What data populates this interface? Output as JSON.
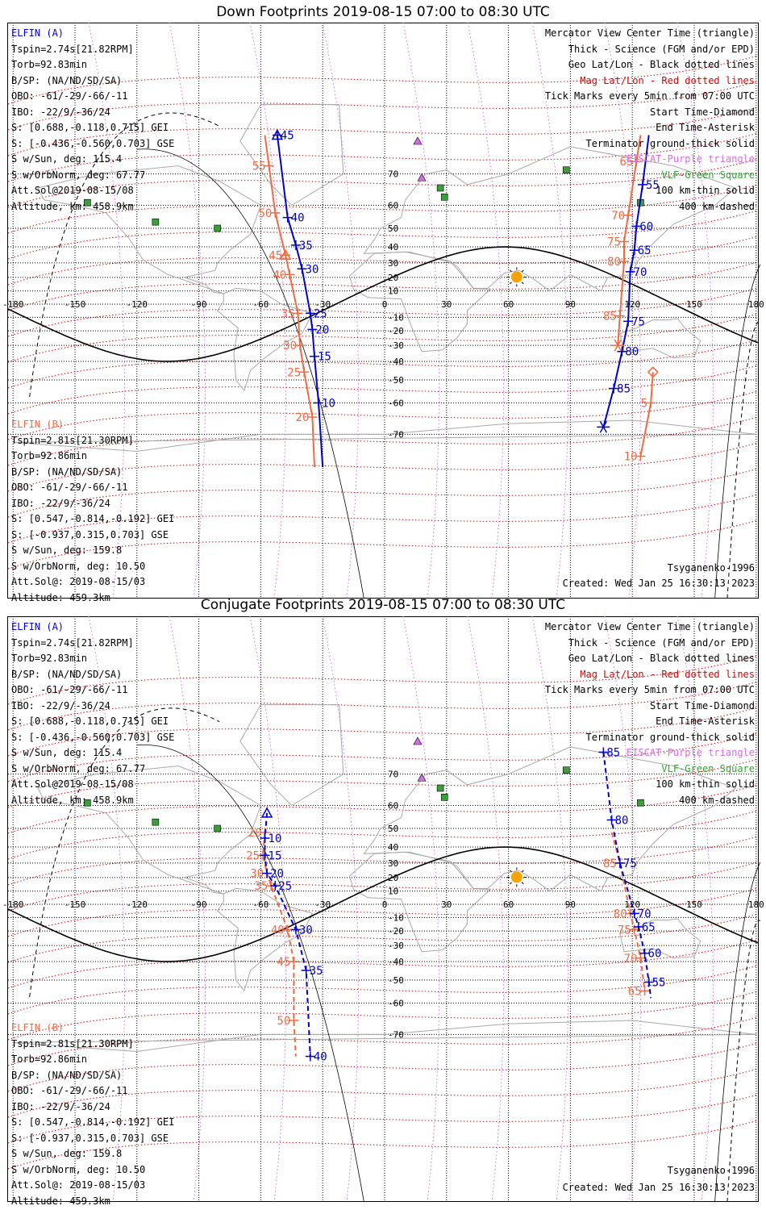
{
  "panels": [
    {
      "title": "Down Footprints 2019-08-15 07:00 to 08:30 UTC",
      "elfin_a": {
        "name": "ELFIN (A)",
        "lines": [
          "Tspin=2.74s[21.82RPM]",
          "Torb=92.83min",
          "B/SP: (NA/ND/SD/SA)",
          "OBO: -61/-29/-66/-11",
          "IBO: -22/9/-36/24",
          "S: [0.688,-0.118,0.715] GEI",
          "S: [-0.436,-0.560,0.703] GSE",
          "S w/Sun, deg: 115.4",
          "S w/OrbNorm, deg: 67.77",
          "Att.Sol@2019-08-15/08",
          "Altitude, km: 458.9km"
        ]
      },
      "elfin_b": {
        "name": "ELFIN (B)",
        "lines": [
          "Tspin=2.81s[21.30RPM]",
          "Torb=92.86min",
          "B/SP: (NA/ND/SD/SA)",
          "OBO: -61/-29/-66/-11",
          "IBO: -22/9/-36/24",
          "S: [0.547,-0.814,-0.192] GEI",
          "S: [-0.937,0.315,0.703] GSE",
          "S w/Sun, deg: 159.8",
          "S w/OrbNorm, deg: 10.50",
          "Att.Sol@: 2019-08-15/03",
          "Altitude: 459.3km"
        ]
      },
      "legend": [
        "Mercator View Center Time (triangle)",
        "Thick - Science (FGM and/or EPD)",
        "Geo Lat/Lon - Black dotted lines",
        "Mag Lat/Lon - Red dotted lines",
        "Tick Marks every 5min from 07:00 UTC",
        "Start Time-Diamond",
        "End Time-Asterisk",
        "Terminator ground-thick solid",
        "EISCAT-Purple triangle",
        "VLF-Green Square",
        "100 km-thin solid",
        "400 km-dashed"
      ],
      "model": "Tsyganenko-1996",
      "created": "Created: Wed Jan 25 16:30:13 2023",
      "track_a": [
        {
          "lon": -52,
          "lat": 78,
          "t": "45"
        },
        {
          "lon": -47,
          "lat": 55,
          "t": "40"
        },
        {
          "lon": -43,
          "lat": 41,
          "t": "35"
        },
        {
          "lon": -40,
          "lat": 26,
          "t": "30"
        },
        {
          "lon": -36,
          "lat": -7,
          "t": "25"
        },
        {
          "lon": -35,
          "lat": -19,
          "t": "20"
        },
        {
          "lon": -34,
          "lat": -37,
          "t": "15"
        },
        {
          "lon": -32,
          "lat": -60,
          "t": "10"
        },
        {
          "lon": -30,
          "lat": -77,
          "t": ""
        }
      ],
      "track_b": [
        {
          "lon": -58,
          "lat": 78,
          "t": ""
        },
        {
          "lon": -56,
          "lat": 72,
          "t": "55"
        },
        {
          "lon": -53,
          "lat": 57,
          "t": "50"
        },
        {
          "lon": -48,
          "lat": 35,
          "t": "45"
        },
        {
          "lon": -46,
          "lat": 22,
          "t": "40"
        },
        {
          "lon": -42,
          "lat": -7,
          "t": "35"
        },
        {
          "lon": -41,
          "lat": -30,
          "t": "30"
        },
        {
          "lon": -39,
          "lat": -46,
          "t": "25"
        },
        {
          "lon": -35,
          "lat": -65,
          "t": "20"
        },
        {
          "lon": -34,
          "lat": -77,
          "t": ""
        }
      ],
      "track_a2": [
        {
          "lon": 128,
          "lat": 78,
          "t": ""
        },
        {
          "lon": 125,
          "lat": 67,
          "t": "55"
        },
        {
          "lon": 122,
          "lat": 51,
          "t": "60"
        },
        {
          "lon": 121,
          "lat": 38,
          "t": "65"
        },
        {
          "lon": 119,
          "lat": 24,
          "t": "70"
        },
        {
          "lon": 118,
          "lat": -13,
          "t": "75"
        },
        {
          "lon": 115,
          "lat": -34,
          "t": "80"
        },
        {
          "lon": 111,
          "lat": -54,
          "t": "85"
        },
        {
          "lon": 106,
          "lat": -68,
          "t": ""
        }
      ],
      "track_b2": [
        {
          "lon": 124,
          "lat": 78,
          "t": ""
        },
        {
          "lon": 122,
          "lat": 73,
          "t": "65"
        },
        {
          "lon": 118,
          "lat": 56,
          "t": "70"
        },
        {
          "lon": 116,
          "lat": 43,
          "t": "75"
        },
        {
          "lon": 116,
          "lat": 31,
          "t": "80"
        },
        {
          "lon": 114,
          "lat": -9,
          "t": "85"
        },
        {
          "lon": 113,
          "lat": -30,
          "t": ""
        }
      ],
      "track_b3": [
        {
          "lon": 130,
          "lat": -46,
          "t": ""
        },
        {
          "lon": 129,
          "lat": -60,
          "t": "5"
        },
        {
          "lon": 124,
          "lat": -75,
          "t": "10"
        }
      ]
    },
    {
      "title": "Conjugate Footprints 2019-08-15 07:00 to 08:30 UTC",
      "elfin_a": {
        "name": "ELFIN (A)",
        "lines": [
          "Tspin=2.74s[21.82RPM]",
          "Torb=92.83min",
          "B/SP: (NA/ND/SD/SA)",
          "OBO: -61/-29/-66/-11",
          "IBO: -22/9/-36/24",
          "S: [0.688,-0.118,0.715] GEI",
          "S: [-0.436,-0.560,0.703] GSE",
          "S w/Sun, deg: 115.4",
          "S w/OrbNorm, deg: 67.77",
          "Att.Sol@2019-08-15/08",
          "Altitude, km: 458.9km"
        ]
      },
      "elfin_b": {
        "name": "ELFIN (B)",
        "lines": [
          "Tspin=2.81s[21.30RPM]",
          "Torb=92.86min",
          "B/SP: (NA/ND/SD/SA)",
          "OBO: -61/-29/-66/-11",
          "IBO: -22/9/-36/24",
          "S: [0.547,-0.814,-0.192] GEI",
          "S: [-0.937,0.315,0.703] GSE",
          "S w/Sun, deg: 159.8",
          "S w/OrbNorm, deg: 10.50",
          "Att.Sol@: 2019-08-15/03",
          "Altitude: 459.3km"
        ]
      },
      "legend": [
        "Mercator View Center Time (triangle)",
        "Thick - Science (FGM and/or EPD)",
        "Geo Lat/Lon - Black dotted lines",
        "Mag Lat/Lon - Red dotted lines",
        "Tick Marks every 5min from 07:00 UTC",
        "Start Time-Diamond",
        "End Time-Asterisk",
        "Terminator ground-thick solid",
        "EISCAT-Purple triangle",
        "VLF-Green Square",
        "100 km-thin solid",
        "400 km-dashed"
      ],
      "model": "Tsyganenko-1996",
      "created": "Created: Wed Jan 25 16:30:13 2023",
      "track_a": [
        {
          "lon": -57,
          "lat": 57,
          "t": ""
        },
        {
          "lon": -58,
          "lat": 45,
          "t": "10"
        },
        {
          "lon": -58,
          "lat": 35,
          "t": "15"
        },
        {
          "lon": -57,
          "lat": 23,
          "t": "20"
        },
        {
          "lon": -53,
          "lat": 14,
          "t": "25"
        },
        {
          "lon": -43,
          "lat": -19,
          "t": "30"
        },
        {
          "lon": -38,
          "lat": -45,
          "t": "35"
        },
        {
          "lon": -36,
          "lat": -75,
          "t": "40"
        }
      ],
      "track_b": [
        {
          "lon": -58,
          "lat": 48,
          "t": "20"
        },
        {
          "lon": -59,
          "lat": 35,
          "t": "25"
        },
        {
          "lon": -57,
          "lat": 23,
          "t": "30"
        },
        {
          "lon": -55,
          "lat": 14,
          "t": "35"
        },
        {
          "lon": -47,
          "lat": -19,
          "t": "40"
        },
        {
          "lon": -44,
          "lat": -40,
          "t": "45"
        },
        {
          "lon": -44,
          "lat": -66,
          "t": "50"
        },
        {
          "lon": -43,
          "lat": -75,
          "t": ""
        }
      ],
      "track_a2": [
        {
          "lon": 106,
          "lat": 75,
          "t": "85"
        },
        {
          "lon": 110,
          "lat": 54,
          "t": "80"
        },
        {
          "lon": 114,
          "lat": 30,
          "t": "75"
        },
        {
          "lon": 121,
          "lat": -7,
          "t": "70"
        },
        {
          "lon": 123,
          "lat": -17,
          "t": "65"
        },
        {
          "lon": 126,
          "lat": -35,
          "t": "60"
        },
        {
          "lon": 128,
          "lat": -51,
          "t": "55"
        },
        {
          "lon": 129,
          "lat": -58,
          "t": ""
        }
      ],
      "track_b2": [
        {
          "lon": 110,
          "lat": 48,
          "t": ""
        },
        {
          "lon": 114,
          "lat": 30,
          "t": "85"
        },
        {
          "lon": 119,
          "lat": -7,
          "t": "80"
        },
        {
          "lon": 121,
          "lat": -19,
          "t": "75"
        },
        {
          "lon": 124,
          "lat": -38,
          "t": "70"
        },
        {
          "lon": 126,
          "lat": -55,
          "t": "65"
        }
      ],
      "track_b3": []
    }
  ],
  "map_axes": {
    "lon_ticks": [
      "-180",
      "-150",
      "-120",
      "-90",
      "-60",
      "-30",
      "0",
      "30",
      "60",
      "90",
      "120",
      "150",
      "180"
    ],
    "lat_ticks": [
      "70",
      "60",
      "50",
      "40",
      "30",
      "20",
      "10",
      "-10",
      "-20",
      "-30",
      "-40",
      "-50",
      "-60",
      "-70"
    ]
  },
  "colors": {
    "elfin_a": "#0000cc",
    "elfin_b": "#f26a43",
    "mag_grid": "#e00000",
    "eiscat": "#d070e0",
    "vlf": "#38a038"
  }
}
